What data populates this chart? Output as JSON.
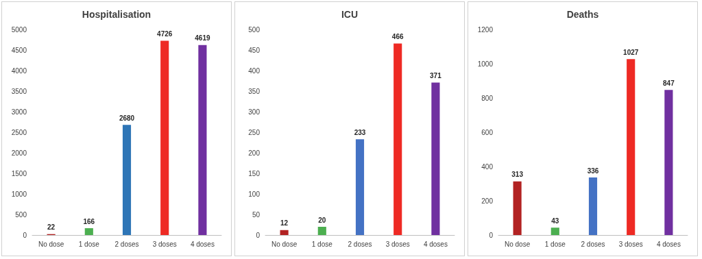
{
  "chart_data": [
    {
      "type": "bar",
      "title": "Hospitalisation",
      "categories": [
        "No dose",
        "1 dose",
        "2 doses",
        "3 doses",
        "4 doses"
      ],
      "values": [
        22,
        166,
        2680,
        4726,
        4619
      ],
      "colors": [
        "#b22222",
        "#4caf50",
        "#2e75b6",
        "#ee2a24",
        "#7030a0"
      ],
      "ylim": [
        0,
        5000
      ],
      "yticks": [
        0,
        500,
        1000,
        1500,
        2000,
        2500,
        3000,
        3500,
        4000,
        4500,
        5000
      ],
      "data_labels": true,
      "grid": false
    },
    {
      "type": "bar",
      "title": "ICU",
      "categories": [
        "No dose",
        "1 dose",
        "2 doses",
        "3 doses",
        "4 doses"
      ],
      "values": [
        12,
        20,
        233,
        466,
        371
      ],
      "colors": [
        "#b22222",
        "#4caf50",
        "#4472c4",
        "#ee2a24",
        "#7030a0"
      ],
      "ylim": [
        0,
        500
      ],
      "yticks": [
        0,
        50,
        100,
        150,
        200,
        250,
        300,
        350,
        400,
        450,
        500
      ],
      "data_labels": true,
      "grid": false
    },
    {
      "type": "bar",
      "title": "Deaths",
      "categories": [
        "No dose",
        "1 dose",
        "2 doses",
        "3 doses",
        "4 doses"
      ],
      "values": [
        313,
        43,
        336,
        1027,
        847
      ],
      "colors": [
        "#b22222",
        "#4caf50",
        "#4472c4",
        "#ee2a24",
        "#7030a0"
      ],
      "ylim": [
        0,
        1200
      ],
      "yticks": [
        0,
        200,
        400,
        600,
        800,
        1000,
        1200
      ],
      "data_labels": true,
      "grid": false
    }
  ]
}
